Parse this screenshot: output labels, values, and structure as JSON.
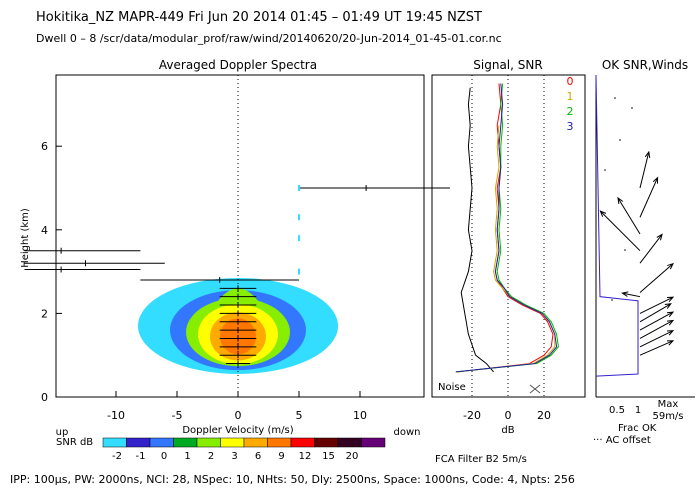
{
  "header": {
    "line1": "Hokitika_NZ  MAPR-449  Fri Jun 20 2014 01:45 – 01:49 UT 19:45 NZST",
    "line2": "Dwell  0 –  8   /scr/data/modular_prof/raw/wind/20140620/20-Jun-2014_01-45-01.cor.nc"
  },
  "footer": "IPP: 100µs,  PW: 2000ns,  NCI: 28,  NSpec: 10,  NHts: 50,  Dly: 2500ns,  Space: 1000ns,  Code: 4,  Npts: 256",
  "colors": {
    "snr_scale": [
      "#33ddff",
      "#3322cc",
      "#3377ff",
      "#00aa22",
      "#88ee00",
      "#ffff00",
      "#ffaa00",
      "#ff7700",
      "#ff0000",
      "#660000",
      "#330022",
      "#660077"
    ],
    "channel": [
      "#ff0000",
      "#ccaa00",
      "#00bb00",
      "#2222aa"
    ]
  },
  "chart_data": [
    {
      "type": "heatmap",
      "title": "Averaged Doppler Spectra",
      "xlabel": "Doppler Velocity (m/s)",
      "ylabel": "Height (km)",
      "xlim": [
        -15,
        15
      ],
      "ylim": [
        0,
        7.7
      ],
      "xticks": [
        -10,
        -5,
        0,
        5,
        10
      ],
      "yticks": [
        0,
        2,
        4,
        6
      ],
      "x_left_note": "up",
      "x_right_note": "down",
      "colorbar": {
        "label": "SNR dB",
        "ticks": [
          "-2",
          "-1",
          "0",
          "1",
          "2",
          "3",
          "6",
          "9",
          "12",
          "15",
          "20"
        ]
      },
      "velocity_bars": [
        {
          "h": 5.0,
          "v": 10.5,
          "lo": 5.0,
          "hi": 17.5
        },
        {
          "h": 3.5,
          "v": -14.5,
          "lo": -17.5,
          "hi": -8.0
        },
        {
          "h": 3.2,
          "v": -12.5,
          "lo": -17.5,
          "hi": -6.0
        },
        {
          "h": 3.05,
          "v": -14.5,
          "lo": -17.5,
          "hi": -8.0
        },
        {
          "h": 2.8,
          "v": -1.5,
          "lo": -8.0,
          "hi": 5.0
        },
        {
          "h": 2.6,
          "v": 0.0,
          "lo": -1.5,
          "hi": 1.5
        },
        {
          "h": 2.4,
          "v": 0.0,
          "lo": -1.5,
          "hi": 1.5
        },
        {
          "h": 2.2,
          "v": 0.0,
          "lo": -1.5,
          "hi": 1.5
        },
        {
          "h": 2.0,
          "v": 0.0,
          "lo": -1.5,
          "hi": 1.5
        },
        {
          "h": 1.8,
          "v": 0.0,
          "lo": -1.5,
          "hi": 1.5
        },
        {
          "h": 1.6,
          "v": 0.0,
          "lo": -1.5,
          "hi": 1.5
        },
        {
          "h": 1.4,
          "v": 0.0,
          "lo": -1.5,
          "hi": 1.5
        },
        {
          "h": 1.2,
          "v": 0.0,
          "lo": -1.5,
          "hi": 1.5
        },
        {
          "h": 1.0,
          "v": 0.0,
          "lo": -1.5,
          "hi": 1.5
        },
        {
          "h": 0.8,
          "v": 0.0,
          "lo": -1.0,
          "hi": 1.0
        }
      ]
    },
    {
      "type": "line",
      "title": "Signal, SNR",
      "xlabel": "dB",
      "xlim": [
        -30,
        30
      ],
      "ylim": [
        0,
        7.7
      ],
      "xticks": [
        -20,
        0,
        20
      ],
      "noise_label": "Noise",
      "legend": [
        "0",
        "1",
        "2",
        "3"
      ],
      "signal": {
        "h": [
          0.6,
          0.8,
          1.0,
          1.5,
          2.0,
          2.5,
          3.0,
          3.5,
          4.0,
          4.5,
          5.0,
          5.5,
          6.0,
          6.5,
          7.0,
          7.4
        ],
        "v": [
          -8,
          -12,
          -18,
          -22,
          -24,
          -26,
          -22,
          -20,
          -22,
          -21,
          -20,
          -21,
          -22,
          -21,
          -22,
          -21
        ]
      },
      "snr": [
        {
          "name": "0",
          "h": [
            0.6,
            0.8,
            1.0,
            1.2,
            1.5,
            1.8,
            2.0,
            2.2,
            2.4,
            2.6,
            2.8,
            3.0,
            3.5,
            4.0,
            4.5,
            5.0,
            5.5,
            6.0,
            6.5,
            7.0,
            7.5
          ],
          "v": [
            -28,
            12,
            20,
            24,
            25,
            22,
            18,
            8,
            0,
            -3,
            -6,
            -7,
            -5,
            -6,
            -5,
            -6,
            -4,
            -5,
            -6,
            -4,
            -5
          ]
        },
        {
          "name": "1",
          "h": [
            0.6,
            0.8,
            1.0,
            1.2,
            1.5,
            1.8,
            2.0,
            2.2,
            2.4,
            2.6,
            2.8,
            3.0,
            3.5,
            4.0,
            4.5,
            5.0,
            5.5,
            6.0,
            6.5
          ],
          "v": [
            -28,
            14,
            22,
            26,
            26,
            23,
            19,
            9,
            1,
            -3,
            -7,
            -8,
            -6,
            -7,
            -6,
            -7,
            -5,
            -6,
            -5
          ]
        },
        {
          "name": "2",
          "h": [
            0.6,
            0.8,
            1.0,
            1.2,
            1.5,
            1.8,
            2.0,
            2.2,
            2.4,
            2.6,
            2.8,
            3.0,
            3.5,
            4.0,
            4.5,
            5.0,
            5.5,
            6.0,
            6.5,
            7.0,
            7.5
          ],
          "v": [
            -29,
            16,
            24,
            28,
            27,
            24,
            20,
            10,
            2,
            -2,
            -5,
            -6,
            -4,
            -5,
            -4,
            -5,
            -4,
            -4,
            -3,
            -4,
            -3
          ]
        },
        {
          "name": "3",
          "h": [
            0.6,
            0.8,
            1.0,
            1.2,
            1.5,
            1.8,
            2.0,
            2.2,
            2.4,
            2.6,
            2.8,
            3.0,
            3.5,
            4.0,
            4.5,
            5.0,
            5.5,
            6.0,
            6.5,
            7.0,
            7.5
          ],
          "v": [
            -29,
            15,
            23,
            27,
            26,
            23,
            19,
            9,
            1,
            -2,
            -6,
            -7,
            -5,
            -6,
            -5,
            -5,
            -4,
            -5,
            -4,
            -3,
            -4
          ]
        }
      ]
    },
    {
      "type": "line",
      "title": "OK SNR,Winds",
      "xlim": [
        0,
        1
      ],
      "ylim": [
        0,
        7.7
      ],
      "xticks": [
        "0.5",
        "1"
      ],
      "frac_ok_label": "Frac OK",
      "ac_offset_label": "··· AC offset",
      "max_label": "Max",
      "max_value": "59m/s",
      "frac_ok": {
        "h": [
          0.5,
          2.3,
          2.4,
          7.7
        ],
        "v": [
          0.0,
          1.0,
          0.1,
          0.0
        ]
      },
      "winds": [
        {
          "h": 1.0,
          "u": 15,
          "v": 8
        },
        {
          "h": 1.2,
          "u": 15,
          "v": 9
        },
        {
          "h": 1.4,
          "u": 15,
          "v": 10
        },
        {
          "h": 1.6,
          "u": 15,
          "v": 10
        },
        {
          "h": 1.8,
          "u": 14,
          "v": 10
        },
        {
          "h": 2.0,
          "u": 15,
          "v": 9
        },
        {
          "h": 2.4,
          "u": -8,
          "v": 2
        },
        {
          "h": 2.5,
          "u": 15,
          "v": 16
        },
        {
          "h": 3.2,
          "u": 10,
          "v": 16
        },
        {
          "h": 3.5,
          "u": -18,
          "v": 22
        },
        {
          "h": 3.9,
          "u": -10,
          "v": 20
        },
        {
          "h": 4.3,
          "u": 8,
          "v": 22
        },
        {
          "h": 5.0,
          "u": 4,
          "v": 20
        }
      ]
    }
  ]
}
